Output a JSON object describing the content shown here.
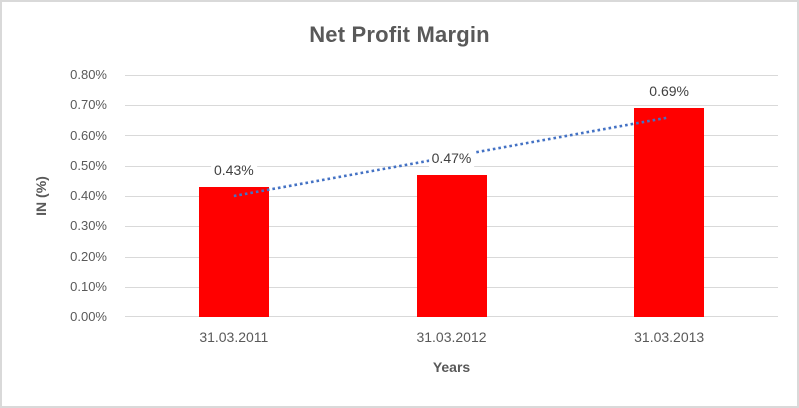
{
  "chart_data": {
    "type": "bar",
    "title": "Net Profit Margin",
    "categories": [
      "31.03.2011",
      "31.03.2012",
      "31.03.2013"
    ],
    "values": [
      0.43,
      0.47,
      0.69
    ],
    "data_labels": [
      "0.43%",
      "0.47%",
      "0.69%"
    ],
    "xlabel": "Years",
    "ylabel": "IN (%)",
    "ylim": [
      0,
      0.8
    ],
    "ytick_step": 0.1,
    "ytick_labels": [
      "0.00%",
      "0.10%",
      "0.20%",
      "0.30%",
      "0.40%",
      "0.50%",
      "0.60%",
      "0.70%",
      "0.80%"
    ],
    "grid": true,
    "legend": "none",
    "bar_color": "#FF0000",
    "trendline": {
      "type": "linear",
      "style": "dotted",
      "color": "#4472C4",
      "start_value": 0.4,
      "end_value": 0.66
    }
  },
  "colors": {
    "title-text": "#595959",
    "axis-text": "#595959",
    "data-label-text": "#404040",
    "gridline": "#D9D9D9",
    "bar": "#FF0000",
    "trendline": "#4472C4",
    "frame-border": "#D9D9D9",
    "background": "#FFFFFF"
  }
}
